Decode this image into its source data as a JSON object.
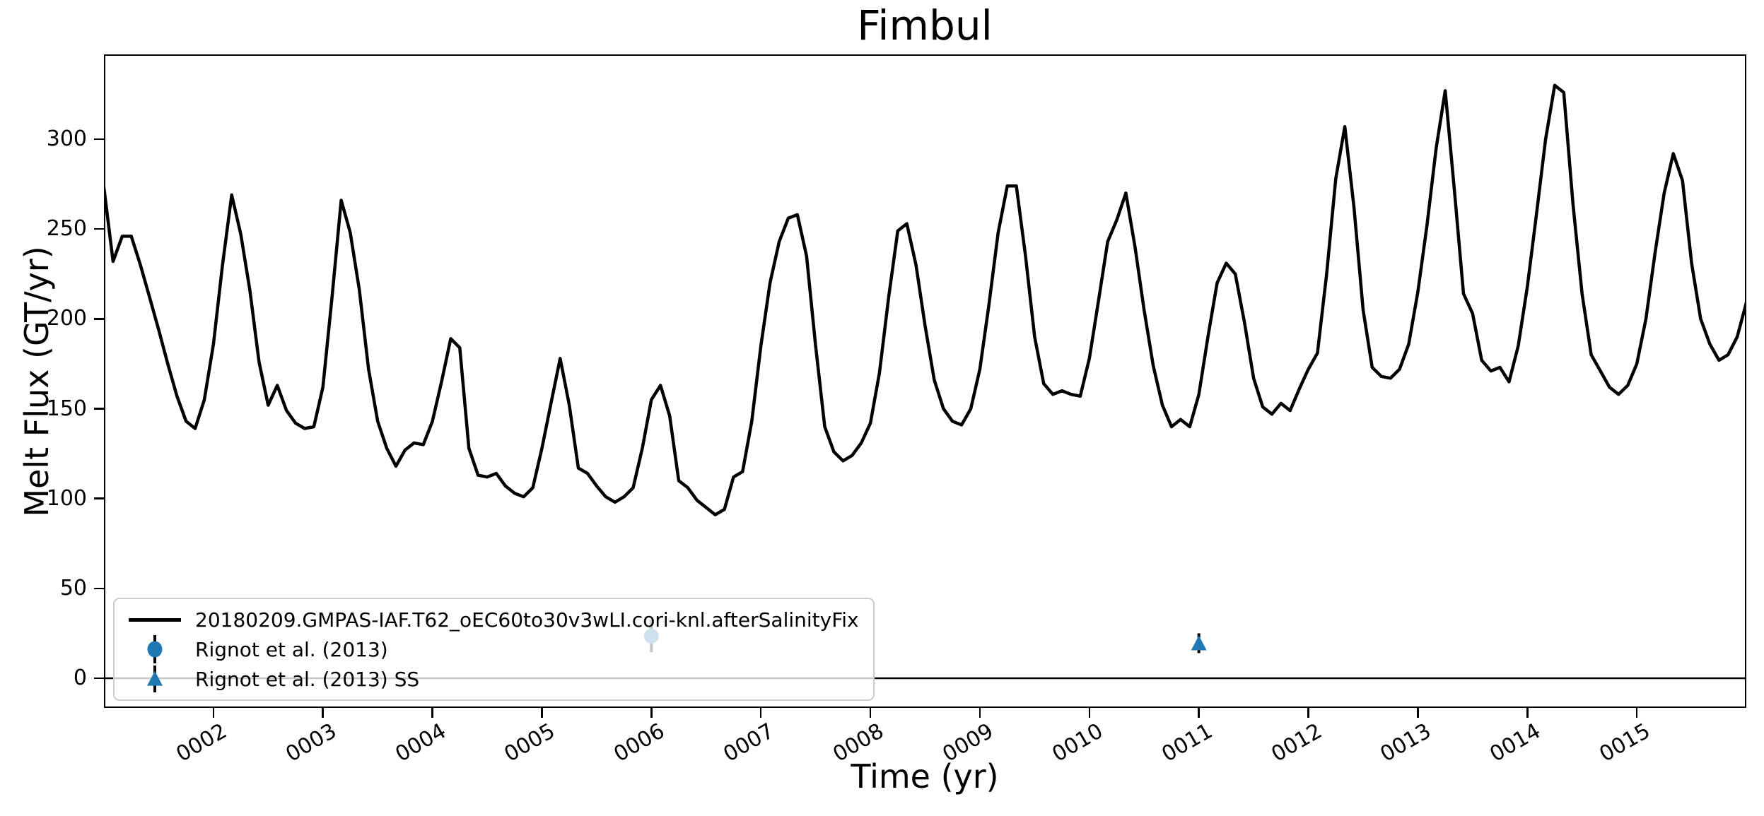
{
  "figure": {
    "title": "Fimbul",
    "xlabel": "Time (yr)",
    "ylabel": "Melt Flux (GT/yr)"
  },
  "colors": {
    "line": "#000000",
    "marker_blue": "#1f77b4",
    "error_bar": "#000000",
    "zero_line": "#000000",
    "legend_border": "#cccccc"
  },
  "chart_data": {
    "type": "line",
    "title": "Fimbul",
    "xlabel": "Time (yr)",
    "ylabel": "Melt Flux (GT/yr)",
    "xlim": [
      1.0,
      16.0
    ],
    "ylim": [
      -16.5,
      347.2
    ],
    "grid": false,
    "legend_position": "lower left",
    "zero_line_y": 0,
    "x_ticks": {
      "values": [
        2,
        3,
        4,
        5,
        6,
        7,
        8,
        9,
        10,
        11,
        12,
        13,
        14,
        15
      ],
      "labels": [
        "0002",
        "0003",
        "0004",
        "0005",
        "0006",
        "0007",
        "0008",
        "0009",
        "0010",
        "0011",
        "0012",
        "0013",
        "0014",
        "0015"
      ],
      "rotation_deg": 30
    },
    "y_ticks": {
      "values": [
        0,
        50,
        100,
        150,
        200,
        250,
        300
      ],
      "labels": [
        "0",
        "50",
        "100",
        "150",
        "200",
        "250",
        "300"
      ]
    },
    "series": [
      {
        "name": "20180209.GMPAS-IAF.T62_oEC60to30v3wLI.cori-knl.afterSalinityFix",
        "color": "#000000",
        "line_width": 4.5,
        "x": [
          1.0,
          1.083,
          1.167,
          1.25,
          1.333,
          1.417,
          1.5,
          1.583,
          1.667,
          1.75,
          1.833,
          1.917,
          2.0,
          2.083,
          2.167,
          2.25,
          2.333,
          2.417,
          2.5,
          2.583,
          2.667,
          2.75,
          2.833,
          2.917,
          3.0,
          3.083,
          3.167,
          3.25,
          3.333,
          3.417,
          3.5,
          3.583,
          3.667,
          3.75,
          3.833,
          3.917,
          4.0,
          4.083,
          4.167,
          4.25,
          4.333,
          4.417,
          4.5,
          4.583,
          4.667,
          4.75,
          4.833,
          4.917,
          5.0,
          5.083,
          5.167,
          5.25,
          5.333,
          5.417,
          5.5,
          5.583,
          5.667,
          5.75,
          5.833,
          5.917,
          6.0,
          6.083,
          6.167,
          6.25,
          6.333,
          6.417,
          6.5,
          6.583,
          6.667,
          6.75,
          6.833,
          6.917,
          7.0,
          7.083,
          7.167,
          7.25,
          7.333,
          7.417,
          7.5,
          7.583,
          7.667,
          7.75,
          7.833,
          7.917,
          8.0,
          8.083,
          8.167,
          8.25,
          8.333,
          8.417,
          8.5,
          8.583,
          8.667,
          8.75,
          8.833,
          8.917,
          9.0,
          9.083,
          9.167,
          9.25,
          9.333,
          9.417,
          9.5,
          9.583,
          9.667,
          9.75,
          9.833,
          9.917,
          10.0,
          10.083,
          10.167,
          10.25,
          10.333,
          10.417,
          10.5,
          10.583,
          10.667,
          10.75,
          10.833,
          10.917,
          11.0,
          11.083,
          11.167,
          11.25,
          11.333,
          11.417,
          11.5,
          11.583,
          11.667,
          11.75,
          11.833,
          11.917,
          12.0,
          12.083,
          12.167,
          12.25,
          12.333,
          12.417,
          12.5,
          12.583,
          12.667,
          12.75,
          12.833,
          12.917,
          13.0,
          13.083,
          13.167,
          13.25,
          13.333,
          13.417,
          13.5,
          13.583,
          13.667,
          13.75,
          13.833,
          13.917,
          14.0,
          14.083,
          14.167,
          14.25,
          14.333,
          14.417,
          14.5,
          14.583,
          14.667,
          14.75,
          14.833,
          14.917,
          15.0,
          15.083,
          15.167,
          15.25,
          15.333,
          15.417,
          15.5,
          15.583,
          15.667,
          15.75,
          15.833,
          15.917,
          16.0
        ],
        "y": [
          273,
          232,
          246,
          246,
          230,
          212,
          194,
          175,
          157,
          143,
          139,
          155,
          186,
          230,
          269,
          247,
          216,
          176,
          152,
          163,
          149,
          142,
          139,
          140,
          162,
          212,
          266,
          248,
          216,
          172,
          143,
          128,
          118,
          127,
          131,
          130,
          143,
          165,
          189,
          184,
          128,
          113,
          112,
          114,
          107,
          103,
          101,
          106,
          128,
          153,
          178,
          152,
          117,
          114,
          107,
          101,
          98,
          101,
          106,
          128,
          155,
          163,
          146,
          110,
          106,
          99,
          95,
          91,
          94,
          112,
          115,
          143,
          185,
          220,
          243,
          256,
          258,
          235,
          185,
          140,
          126,
          121,
          124,
          131,
          142,
          170,
          212,
          249,
          253,
          230,
          196,
          166,
          150,
          143,
          141,
          150,
          172,
          208,
          248,
          274,
          274,
          235,
          190,
          164,
          158,
          160,
          158,
          157,
          178,
          210,
          243,
          255,
          270,
          240,
          205,
          174,
          152,
          140,
          144,
          140,
          158,
          190,
          220,
          231,
          225,
          198,
          167,
          151,
          147,
          153,
          149,
          161,
          172,
          181,
          225,
          278,
          307,
          262,
          205,
          173,
          168,
          167,
          172,
          186,
          215,
          252,
          295,
          327,
          272,
          214,
          203,
          177,
          171,
          173,
          165,
          185,
          218,
          258,
          300,
          330,
          326,
          264,
          214,
          180,
          171,
          162,
          158,
          163,
          175,
          200,
          237,
          270,
          292,
          277,
          231,
          200,
          186,
          177,
          180,
          190,
          209
        ]
      }
    ],
    "observations": [
      {
        "name": "Rignot et al. (2013)",
        "marker": "circle",
        "color": "#1f77b4",
        "ecolor": "#000000",
        "x": 6.0,
        "y": 23.5,
        "yerr": 9.0,
        "note": "partially hidden under legend"
      },
      {
        "name": "Rignot et al. (2013) SS",
        "marker": "triangle",
        "color": "#1f77b4",
        "ecolor": "#000000",
        "x": 11.0,
        "y": 19.5,
        "yerr": 5.5
      }
    ]
  }
}
